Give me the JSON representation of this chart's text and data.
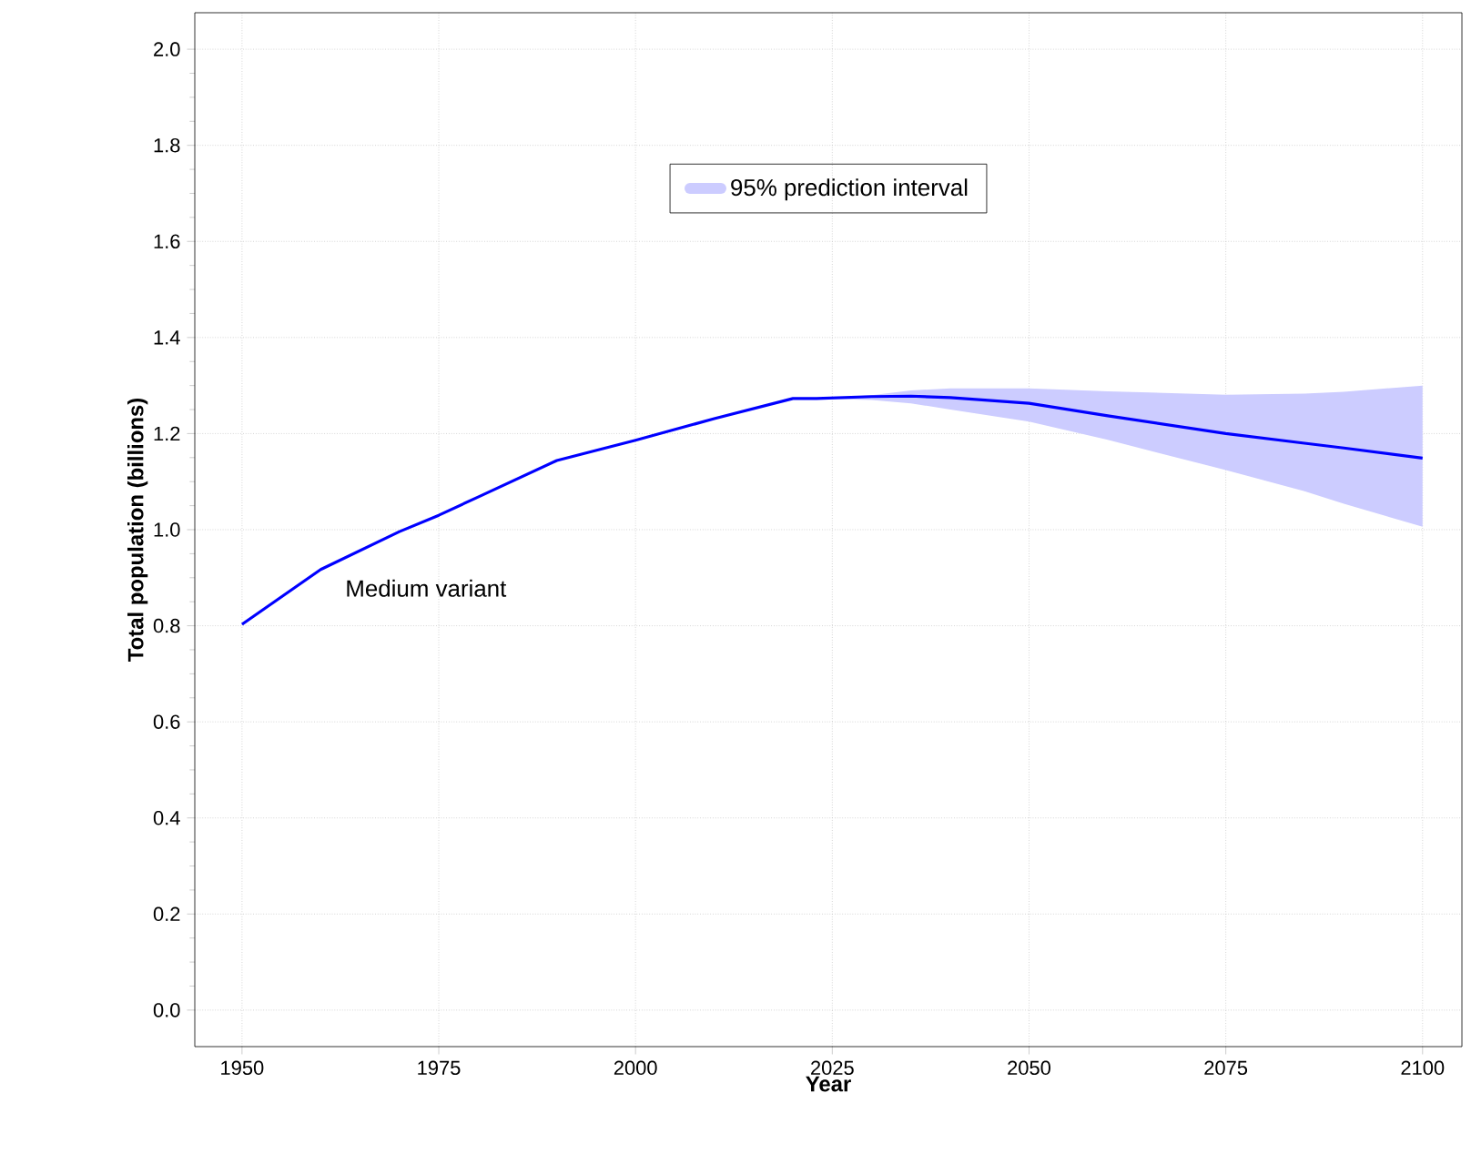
{
  "chart_data": {
    "type": "line",
    "xlabel": "Year",
    "ylabel": "Total population (billions)",
    "legend_title": "95% prediction interval",
    "xlim": [
      1944,
      2105
    ],
    "ylim": [
      -0.076,
      2.076
    ],
    "xticks": [
      1950,
      1975,
      2000,
      2025,
      2050,
      2075,
      2100
    ],
    "yticks": [
      {
        "value": 0,
        "label": "0.0"
      },
      0.2,
      0.4,
      0.6,
      0.8,
      {
        "value": 1,
        "label": "1.0"
      },
      1.2,
      1.4,
      1.6,
      1.8,
      {
        "value": 2,
        "label": "2.0"
      }
    ],
    "grid": true,
    "annotations": [
      {
        "text": "Medium variant",
        "x": 1960,
        "y": 0.917
      }
    ],
    "series": [
      {
        "color": "#0000ff",
        "x": [
          1950,
          1960,
          1970,
          1975,
          1980,
          1990,
          2000,
          2010,
          2020,
          2023,
          2030,
          2035,
          2040,
          2050,
          2060,
          2075,
          2085,
          2090,
          2100
        ],
        "values": [
          0.803,
          0.917,
          0.996,
          1.03,
          1.068,
          1.144,
          1.186,
          1.231,
          1.273,
          1.273,
          1.277,
          1.278,
          1.275,
          1.263,
          1.237,
          1.2,
          1.18,
          1.17,
          1.149
        ],
        "lower": [
          null,
          null,
          null,
          null,
          null,
          null,
          null,
          null,
          null,
          1.273,
          1.27,
          1.263,
          1.25,
          1.225,
          1.187,
          1.124,
          1.08,
          1.054,
          1.006
        ],
        "upper": [
          null,
          null,
          null,
          null,
          null,
          null,
          null,
          null,
          null,
          1.273,
          1.28,
          1.29,
          1.294,
          1.294,
          1.288,
          1.281,
          1.283,
          1.287,
          1.3
        ]
      }
    ]
  }
}
